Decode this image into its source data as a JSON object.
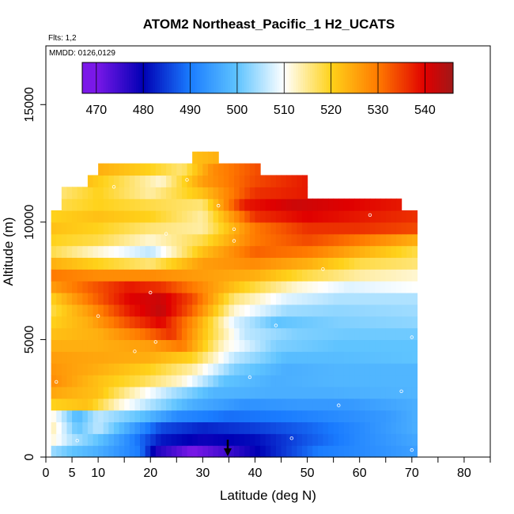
{
  "chart_data": {
    "type": "heatmap",
    "title": "ATOM2 Northeast_Pacific_1 H2_UCATS",
    "flights_label": "Flts: 1,2",
    "dates_label": "MMDD: 0126,0129",
    "xlabel": "Latitude (deg N)",
    "ylabel": "Altitude (m)",
    "xlim": [
      0,
      85
    ],
    "ylim": [
      0,
      17500
    ],
    "x_ticks": [
      0,
      5,
      10,
      20,
      30,
      40,
      50,
      60,
      70,
      80
    ],
    "y_ticks": [
      0,
      5000,
      10000,
      15000
    ],
    "colorbar": {
      "min": 467,
      "max": 546,
      "ticks": [
        470,
        480,
        490,
        500,
        510,
        520,
        530,
        540
      ]
    },
    "colors": {
      "470": "#7b18e8",
      "480": "#0000b4",
      "490": "#1a7cff",
      "500": "#5fc4ff",
      "510": "#ffffff",
      "520": "#ffd21a",
      "530": "#ff7a00",
      "540": "#e00000",
      "546": "#a01818"
    },
    "grid": false,
    "curtain": [
      {
        "alt_min": 0,
        "alt_max": 500,
        "stops": [
          [
            1,
            504
          ],
          [
            5,
            500
          ],
          [
            10,
            497
          ],
          [
            18,
            490
          ],
          [
            21,
            478
          ],
          [
            28,
            470
          ],
          [
            36,
            476
          ],
          [
            45,
            484
          ],
          [
            52,
            490
          ],
          [
            60,
            492
          ],
          [
            71,
            495
          ]
        ]
      },
      {
        "alt_min": 500,
        "alt_max": 1000,
        "stops": [
          [
            1,
            512
          ],
          [
            5,
            505
          ],
          [
            10,
            500
          ],
          [
            16,
            492
          ],
          [
            22,
            482
          ],
          [
            30,
            479
          ],
          [
            40,
            481
          ],
          [
            50,
            487
          ],
          [
            60,
            492
          ],
          [
            71,
            496
          ]
        ]
      },
      {
        "alt_min": 1000,
        "alt_max": 1500,
        "stops": [
          [
            1,
            514
          ],
          [
            6,
            500
          ],
          [
            10,
            506
          ],
          [
            16,
            496
          ],
          [
            22,
            486
          ],
          [
            30,
            483
          ],
          [
            40,
            485
          ],
          [
            50,
            488
          ],
          [
            60,
            492
          ],
          [
            71,
            497
          ]
        ]
      },
      {
        "alt_min": 1500,
        "alt_max": 2000,
        "stops": [
          [
            1,
            512
          ],
          [
            6,
            498
          ],
          [
            10,
            506
          ],
          [
            18,
            500
          ],
          [
            25,
            492
          ],
          [
            35,
            489
          ],
          [
            45,
            490
          ],
          [
            55,
            492
          ],
          [
            65,
            494
          ],
          [
            71,
            497
          ]
        ]
      },
      {
        "alt_min": 2000,
        "alt_max": 2500,
        "stops": [
          [
            1,
            520
          ],
          [
            8,
            522
          ],
          [
            14,
            512
          ],
          [
            20,
            505
          ],
          [
            28,
            497
          ],
          [
            38,
            493
          ],
          [
            48,
            494
          ],
          [
            58,
            494
          ],
          [
            71,
            497
          ]
        ]
      },
      {
        "alt_min": 2500,
        "alt_max": 3000,
        "stops": [
          [
            1,
            525
          ],
          [
            10,
            522
          ],
          [
            16,
            514
          ],
          [
            24,
            505
          ],
          [
            32,
            498
          ],
          [
            42,
            497
          ],
          [
            55,
            497
          ],
          [
            71,
            498
          ]
        ]
      },
      {
        "alt_min": 3000,
        "alt_max": 3500,
        "stops": [
          [
            1,
            528
          ],
          [
            10,
            522
          ],
          [
            18,
            518
          ],
          [
            26,
            512
          ],
          [
            34,
            500
          ],
          [
            44,
            497
          ],
          [
            55,
            498
          ],
          [
            71,
            498
          ]
        ]
      },
      {
        "alt_min": 3500,
        "alt_max": 4000,
        "stops": [
          [
            1,
            527
          ],
          [
            10,
            524
          ],
          [
            20,
            520
          ],
          [
            28,
            514
          ],
          [
            36,
            502
          ],
          [
            46,
            497
          ],
          [
            55,
            498
          ],
          [
            71,
            498
          ]
        ]
      },
      {
        "alt_min": 4000,
        "alt_max": 4500,
        "stops": [
          [
            1,
            526
          ],
          [
            10,
            525
          ],
          [
            20,
            524
          ],
          [
            28,
            520
          ],
          [
            36,
            506
          ],
          [
            46,
            499
          ],
          [
            56,
            499
          ],
          [
            71,
            500
          ]
        ]
      },
      {
        "alt_min": 4500,
        "alt_max": 5000,
        "stops": [
          [
            1,
            524
          ],
          [
            10,
            524
          ],
          [
            20,
            526
          ],
          [
            26,
            530
          ],
          [
            34,
            512
          ],
          [
            44,
            502
          ],
          [
            56,
            500
          ],
          [
            71,
            500
          ]
        ]
      },
      {
        "alt_min": 5000,
        "alt_max": 5500,
        "stops": [
          [
            1,
            522
          ],
          [
            10,
            524
          ],
          [
            18,
            530
          ],
          [
            24,
            536
          ],
          [
            30,
            522
          ],
          [
            38,
            506
          ],
          [
            48,
            502
          ],
          [
            58,
            501
          ],
          [
            71,
            501
          ]
        ]
      },
      {
        "alt_min": 5500,
        "alt_max": 6000,
        "stops": [
          [
            1,
            520
          ],
          [
            8,
            524
          ],
          [
            16,
            534
          ],
          [
            22,
            540
          ],
          [
            28,
            528
          ],
          [
            36,
            508
          ],
          [
            44,
            500
          ],
          [
            56,
            502
          ],
          [
            71,
            503
          ]
        ]
      },
      {
        "alt_min": 6000,
        "alt_max": 6500,
        "stops": [
          [
            1,
            518
          ],
          [
            8,
            526
          ],
          [
            16,
            538
          ],
          [
            22,
            543
          ],
          [
            28,
            532
          ],
          [
            36,
            512
          ],
          [
            46,
            504
          ],
          [
            56,
            503
          ],
          [
            71,
            504
          ]
        ]
      },
      {
        "alt_min": 6500,
        "alt_max": 7000,
        "stops": [
          [
            1,
            520
          ],
          [
            8,
            530
          ],
          [
            16,
            540
          ],
          [
            22,
            542
          ],
          [
            28,
            534
          ],
          [
            36,
            516
          ],
          [
            46,
            508
          ],
          [
            56,
            505
          ],
          [
            71,
            505
          ]
        ]
      },
      {
        "alt_min": 7000,
        "alt_max": 7500,
        "stops": [
          [
            1,
            526
          ],
          [
            8,
            532
          ],
          [
            16,
            538
          ],
          [
            22,
            536
          ],
          [
            30,
            528
          ],
          [
            38,
            520
          ],
          [
            48,
            512
          ],
          [
            58,
            508
          ],
          [
            71,
            510
          ]
        ]
      },
      {
        "alt_min": 7500,
        "alt_max": 8000,
        "stops": [
          [
            1,
            530
          ],
          [
            10,
            528
          ],
          [
            20,
            528
          ],
          [
            30,
            526
          ],
          [
            40,
            524
          ],
          [
            50,
            518
          ],
          [
            60,
            514
          ],
          [
            71,
            512
          ]
        ]
      },
      {
        "alt_min": 8000,
        "alt_max": 8500,
        "stops": [
          [
            1,
            524
          ],
          [
            10,
            520
          ],
          [
            20,
            516
          ],
          [
            30,
            526
          ],
          [
            40,
            528
          ],
          [
            50,
            524
          ],
          [
            60,
            518
          ],
          [
            71,
            516
          ]
        ]
      },
      {
        "alt_min": 8500,
        "alt_max": 9000,
        "stops": [
          [
            1,
            518
          ],
          [
            10,
            512
          ],
          [
            20,
            506
          ],
          [
            30,
            522
          ],
          [
            40,
            532
          ],
          [
            50,
            530
          ],
          [
            60,
            524
          ],
          [
            71,
            518
          ]
        ]
      },
      {
        "alt_min": 9000,
        "alt_max": 9500,
        "stops": [
          [
            1,
            520
          ],
          [
            10,
            518
          ],
          [
            20,
            512
          ],
          [
            30,
            518
          ],
          [
            40,
            530
          ],
          [
            50,
            534
          ],
          [
            60,
            530
          ],
          [
            71,
            524
          ]
        ]
      },
      {
        "alt_min": 9500,
        "alt_max": 10000,
        "stops": [
          [
            1,
            522
          ],
          [
            10,
            520
          ],
          [
            20,
            516
          ],
          [
            30,
            514
          ],
          [
            40,
            530
          ],
          [
            50,
            536
          ],
          [
            60,
            536
          ],
          [
            71,
            534
          ]
        ]
      },
      {
        "alt_min": 10000,
        "alt_max": 10500,
        "stops": [
          [
            1,
            520
          ],
          [
            10,
            522
          ],
          [
            20,
            520
          ],
          [
            30,
            514
          ],
          [
            40,
            536
          ],
          [
            50,
            540
          ],
          [
            60,
            538
          ],
          [
            71,
            536
          ]
        ]
      },
      {
        "alt_min": 10500,
        "alt_max": 11000,
        "stops": [
          [
            3,
            518
          ],
          [
            10,
            520
          ],
          [
            20,
            518
          ],
          [
            30,
            516
          ],
          [
            38,
            538
          ],
          [
            48,
            542
          ],
          [
            58,
            540
          ],
          [
            68,
            538
          ]
        ]
      },
      {
        "alt_min": 11000,
        "alt_max": 11500,
        "stops": [
          [
            3,
            516
          ],
          [
            10,
            520
          ],
          [
            20,
            514
          ],
          [
            30,
            522
          ],
          [
            40,
            536
          ],
          [
            50,
            538
          ]
        ]
      },
      {
        "alt_min": 11500,
        "alt_max": 12000,
        "stops": [
          [
            8,
            522
          ],
          [
            14,
            518
          ],
          [
            22,
            512
          ],
          [
            30,
            526
          ],
          [
            40,
            534
          ],
          [
            50,
            538
          ]
        ]
      },
      {
        "alt_min": 12000,
        "alt_max": 12500,
        "stops": [
          [
            10,
            524
          ],
          [
            20,
            520
          ],
          [
            26,
            516
          ],
          [
            32,
            528
          ],
          [
            41,
            534
          ]
        ]
      },
      {
        "alt_min": 12500,
        "alt_max": 13000,
        "stops": [
          [
            28,
            522
          ],
          [
            33,
            524
          ]
        ]
      }
    ]
  }
}
